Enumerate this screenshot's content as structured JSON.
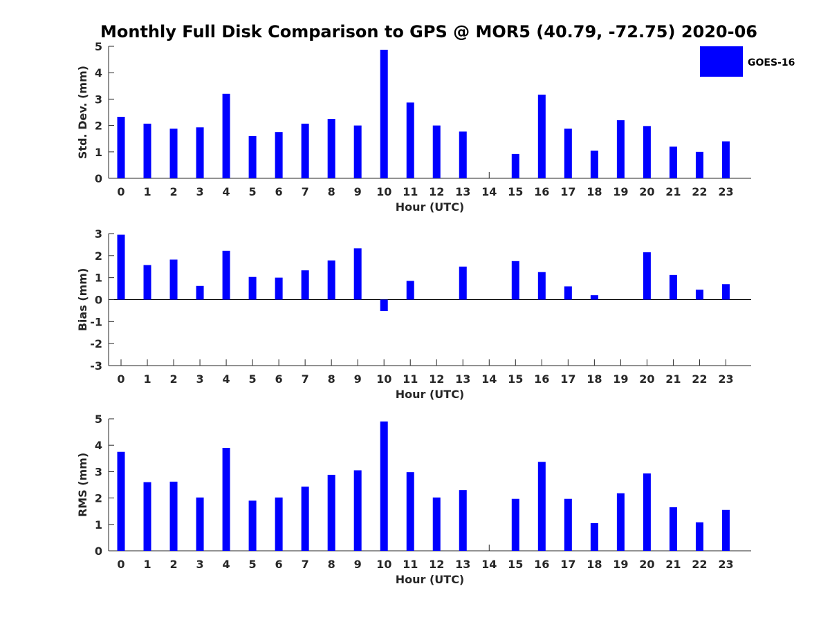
{
  "title": "Monthly Full Disk Comparison to GPS @ MOR5 (40.79, -72.75) 2020-06",
  "colors": {
    "bar": "#0000ff",
    "axis": "#262626",
    "background": "#ffffff"
  },
  "chart_data": [
    {
      "type": "bar",
      "id": "std",
      "xlabel": "Hour (UTC)",
      "ylabel": "Std. Dev. (mm)",
      "ylim": [
        0,
        5
      ],
      "yticks": [
        "0",
        "1",
        "2",
        "3",
        "4",
        "5"
      ],
      "categories": [
        "0",
        "1",
        "2",
        "3",
        "4",
        "5",
        "6",
        "7",
        "8",
        "9",
        "10",
        "11",
        "12",
        "13",
        "14",
        "15",
        "16",
        "17",
        "18",
        "19",
        "20",
        "21",
        "22",
        "23"
      ],
      "series": [
        {
          "name": "GOES-16",
          "values": [
            2.33,
            2.07,
            1.88,
            1.93,
            3.2,
            1.6,
            1.75,
            2.07,
            2.25,
            2.0,
            4.87,
            2.87,
            2.0,
            1.77,
            0,
            0.92,
            3.17,
            1.88,
            1.05,
            2.2,
            1.98,
            1.2,
            1.0,
            1.4
          ]
        }
      ],
      "legend": {
        "label": "GOES-16",
        "position": "top-right"
      }
    },
    {
      "type": "bar",
      "id": "bias",
      "xlabel": "Hour (UTC)",
      "ylabel": "Bias (mm)",
      "ylim": [
        -3,
        3
      ],
      "yticks": [
        "-3",
        "-2",
        "-1",
        "0",
        "1",
        "2",
        "3"
      ],
      "categories": [
        "0",
        "1",
        "2",
        "3",
        "4",
        "5",
        "6",
        "7",
        "8",
        "9",
        "10",
        "11",
        "12",
        "13",
        "14",
        "15",
        "16",
        "17",
        "18",
        "19",
        "20",
        "21",
        "22",
        "23"
      ],
      "series": [
        {
          "name": "GOES-16",
          "values": [
            2.95,
            1.57,
            1.82,
            0.62,
            2.22,
            1.03,
            1.0,
            1.33,
            1.78,
            2.33,
            -0.52,
            0.85,
            0,
            1.5,
            0,
            1.75,
            1.25,
            0.6,
            0.2,
            0,
            2.15,
            1.12,
            0.45,
            0.7
          ]
        }
      ]
    },
    {
      "type": "bar",
      "id": "rms",
      "xlabel": "Hour (UTC)",
      "ylabel": "RMS (mm)",
      "ylim": [
        0,
        5
      ],
      "yticks": [
        "0",
        "1",
        "2",
        "3",
        "4",
        "5"
      ],
      "categories": [
        "0",
        "1",
        "2",
        "3",
        "4",
        "5",
        "6",
        "7",
        "8",
        "9",
        "10",
        "11",
        "12",
        "13",
        "14",
        "15",
        "16",
        "17",
        "18",
        "19",
        "20",
        "21",
        "22",
        "23"
      ],
      "series": [
        {
          "name": "GOES-16",
          "values": [
            3.75,
            2.6,
            2.62,
            2.02,
            3.9,
            1.9,
            2.02,
            2.43,
            2.88,
            3.05,
            4.9,
            2.98,
            2.02,
            2.3,
            0,
            1.97,
            3.37,
            1.97,
            1.05,
            2.18,
            2.93,
            1.65,
            1.08,
            1.55
          ]
        }
      ]
    }
  ]
}
